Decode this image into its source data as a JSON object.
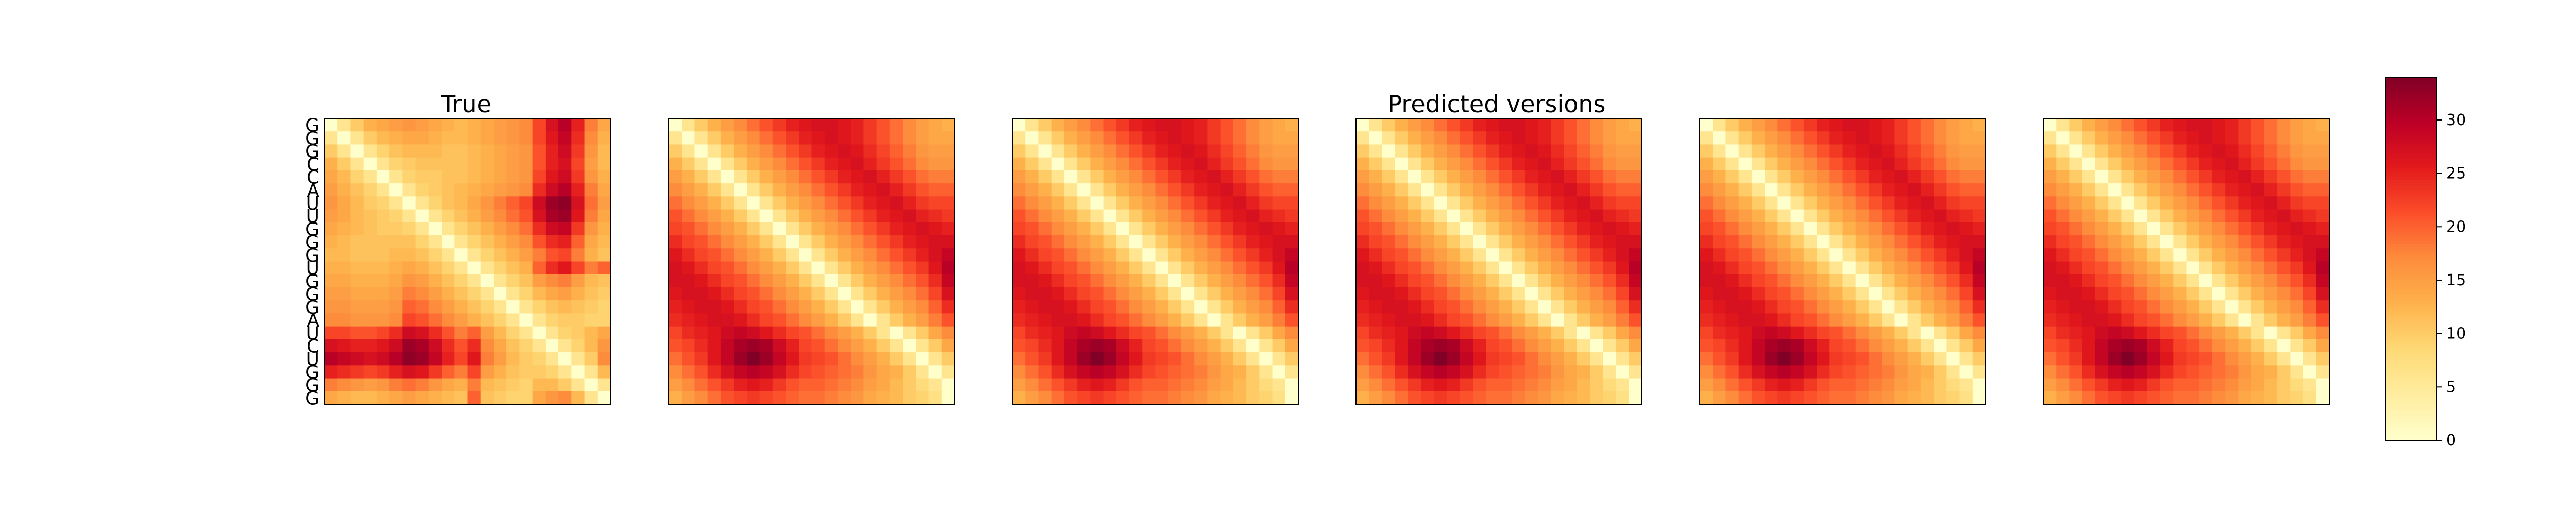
{
  "chart_data": {
    "type": "heatmap",
    "sequence": [
      "G",
      "G",
      "G",
      "C",
      "C",
      "A",
      "U",
      "U",
      "G",
      "G",
      "G",
      "U",
      "G",
      "G",
      "G",
      "A",
      "U",
      "C",
      "U",
      "G",
      "G",
      "G"
    ],
    "value_unit": "distance",
    "colorscale": {
      "name": "YlOrRd",
      "stops": [
        "#ffffcc",
        "#ffeda0",
        "#fed976",
        "#feb24c",
        "#fd8d3c",
        "#fc4e2a",
        "#e31a1c",
        "#bd0026",
        "#800026"
      ],
      "vmin": 0,
      "vmax": 34
    },
    "colorbar_ticks": [
      0,
      5,
      10,
      15,
      20,
      25,
      30
    ],
    "panels": [
      {
        "title": "True",
        "matrix": [
          [
            0,
            6,
            10,
            13,
            14,
            15,
            16,
            15,
            14,
            13,
            12,
            13,
            14,
            15,
            16,
            17,
            22,
            27,
            30,
            25,
            18,
            14
          ],
          [
            6,
            0,
            6,
            10,
            12,
            13,
            14,
            14,
            13,
            12,
            12,
            13,
            14,
            15,
            16,
            17,
            22,
            26,
            29,
            24,
            17,
            13
          ],
          [
            10,
            6,
            0,
            6,
            9,
            11,
            12,
            12,
            12,
            11,
            11,
            12,
            13,
            14,
            15,
            16,
            21,
            25,
            28,
            23,
            16,
            12
          ],
          [
            13,
            10,
            6,
            0,
            6,
            9,
            10,
            11,
            11,
            11,
            11,
            12,
            13,
            14,
            15,
            16,
            21,
            25,
            27,
            22,
            15,
            12
          ],
          [
            14,
            12,
            9,
            6,
            0,
            6,
            9,
            10,
            10,
            11,
            11,
            12,
            13,
            14,
            15,
            16,
            22,
            26,
            28,
            23,
            16,
            13
          ],
          [
            15,
            13,
            11,
            9,
            6,
            0,
            6,
            9,
            10,
            11,
            12,
            13,
            14,
            15,
            16,
            17,
            24,
            28,
            30,
            25,
            18,
            14
          ],
          [
            16,
            14,
            12,
            10,
            9,
            6,
            0,
            6,
            9,
            11,
            12,
            14,
            16,
            18,
            20,
            22,
            28,
            32,
            33,
            27,
            19,
            15
          ],
          [
            15,
            14,
            12,
            11,
            10,
            9,
            6,
            0,
            6,
            9,
            11,
            13,
            15,
            17,
            19,
            21,
            27,
            31,
            32,
            26,
            18,
            14
          ],
          [
            14,
            13,
            12,
            11,
            10,
            10,
            9,
            6,
            0,
            6,
            9,
            11,
            13,
            15,
            17,
            19,
            24,
            28,
            29,
            23,
            16,
            13
          ],
          [
            13,
            12,
            11,
            11,
            11,
            11,
            11,
            9,
            6,
            0,
            6,
            9,
            11,
            13,
            15,
            17,
            21,
            24,
            25,
            20,
            14,
            12
          ],
          [
            12,
            12,
            11,
            11,
            11,
            12,
            12,
            11,
            9,
            6,
            0,
            6,
            9,
            11,
            13,
            15,
            18,
            21,
            22,
            18,
            13,
            11
          ],
          [
            13,
            13,
            12,
            12,
            12,
            13,
            14,
            13,
            11,
            9,
            6,
            0,
            6,
            9,
            11,
            13,
            20,
            24,
            26,
            22,
            18,
            20
          ],
          [
            14,
            14,
            13,
            13,
            13,
            14,
            16,
            15,
            13,
            11,
            9,
            6,
            0,
            6,
            9,
            11,
            15,
            17,
            18,
            15,
            12,
            11
          ],
          [
            15,
            15,
            14,
            14,
            14,
            15,
            18,
            17,
            15,
            13,
            11,
            9,
            6,
            0,
            6,
            9,
            12,
            14,
            15,
            13,
            11,
            10
          ],
          [
            16,
            16,
            15,
            15,
            15,
            16,
            20,
            19,
            17,
            15,
            13,
            11,
            9,
            6,
            0,
            6,
            9,
            11,
            12,
            11,
            10,
            9
          ],
          [
            17,
            17,
            16,
            16,
            16,
            17,
            22,
            21,
            19,
            17,
            15,
            13,
            11,
            9,
            6,
            0,
            6,
            9,
            10,
            10,
            9,
            9
          ],
          [
            22,
            22,
            21,
            21,
            22,
            24,
            28,
            27,
            24,
            21,
            18,
            20,
            15,
            12,
            9,
            6,
            0,
            6,
            9,
            10,
            12,
            14
          ],
          [
            27,
            26,
            25,
            25,
            26,
            28,
            32,
            31,
            28,
            24,
            21,
            24,
            17,
            14,
            11,
            9,
            6,
            0,
            6,
            9,
            12,
            16
          ],
          [
            30,
            29,
            28,
            27,
            28,
            30,
            33,
            32,
            29,
            25,
            22,
            26,
            18,
            15,
            12,
            10,
            9,
            6,
            0,
            6,
            10,
            17
          ],
          [
            25,
            24,
            23,
            22,
            23,
            25,
            27,
            26,
            23,
            20,
            18,
            22,
            15,
            13,
            11,
            10,
            10,
            9,
            6,
            0,
            6,
            12
          ],
          [
            18,
            17,
            16,
            15,
            16,
            18,
            19,
            18,
            16,
            14,
            13,
            18,
            12,
            11,
            10,
            9,
            12,
            12,
            10,
            6,
            0,
            6
          ],
          [
            14,
            13,
            12,
            12,
            13,
            14,
            15,
            14,
            13,
            12,
            11,
            20,
            11,
            10,
            9,
            9,
            14,
            16,
            17,
            12,
            6,
            0
          ]
        ]
      },
      {
        "title": "Predicted versions",
        "matrix": [
          [
            0,
            6,
            10,
            13,
            15,
            17,
            19,
            21,
            23,
            25,
            26,
            27,
            27,
            26,
            25,
            23,
            21,
            19,
            17,
            15,
            14,
            13
          ],
          [
            6,
            0,
            6,
            10,
            13,
            15,
            17,
            19,
            21,
            23,
            25,
            26,
            27,
            26,
            25,
            23,
            21,
            19,
            17,
            15,
            14,
            14
          ],
          [
            10,
            6,
            0,
            6,
            10,
            13,
            15,
            17,
            19,
            21,
            23,
            25,
            26,
            27,
            26,
            24,
            22,
            20,
            18,
            16,
            15,
            15
          ],
          [
            13,
            10,
            6,
            0,
            6,
            10,
            13,
            15,
            17,
            19,
            21,
            23,
            25,
            26,
            27,
            25,
            23,
            21,
            19,
            17,
            16,
            16
          ],
          [
            15,
            13,
            10,
            6,
            0,
            6,
            10,
            13,
            15,
            17,
            19,
            21,
            23,
            25,
            26,
            27,
            25,
            23,
            21,
            19,
            18,
            18
          ],
          [
            17,
            15,
            13,
            10,
            6,
            0,
            6,
            10,
            13,
            15,
            17,
            19,
            21,
            23,
            25,
            26,
            27,
            25,
            23,
            21,
            20,
            20
          ],
          [
            19,
            17,
            15,
            13,
            10,
            6,
            0,
            6,
            10,
            13,
            15,
            17,
            19,
            21,
            23,
            25,
            26,
            27,
            25,
            23,
            22,
            22
          ],
          [
            21,
            19,
            17,
            15,
            13,
            10,
            6,
            0,
            6,
            10,
            13,
            15,
            17,
            19,
            21,
            23,
            25,
            26,
            27,
            25,
            24,
            23
          ],
          [
            22,
            21,
            19,
            17,
            15,
            13,
            10,
            6,
            0,
            6,
            10,
            13,
            15,
            17,
            19,
            21,
            23,
            25,
            26,
            27,
            26,
            25
          ],
          [
            24,
            22,
            21,
            19,
            17,
            15,
            13,
            10,
            6,
            0,
            6,
            10,
            13,
            15,
            17,
            19,
            21,
            23,
            25,
            26,
            27,
            27
          ],
          [
            26,
            24,
            22,
            21,
            19,
            17,
            15,
            13,
            10,
            6,
            0,
            6,
            10,
            13,
            15,
            17,
            19,
            21,
            23,
            25,
            27,
            29
          ],
          [
            27,
            26,
            24,
            22,
            21,
            19,
            17,
            15,
            13,
            10,
            6,
            0,
            6,
            10,
            13,
            15,
            17,
            19,
            21,
            23,
            26,
            30
          ],
          [
            27,
            27,
            26,
            24,
            22,
            21,
            19,
            17,
            15,
            13,
            10,
            6,
            0,
            6,
            10,
            13,
            15,
            17,
            19,
            21,
            24,
            29
          ],
          [
            26,
            27,
            27,
            26,
            24,
            22,
            21,
            19,
            17,
            15,
            13,
            10,
            6,
            0,
            6,
            10,
            13,
            15,
            17,
            19,
            22,
            27
          ],
          [
            25,
            26,
            27,
            27,
            26,
            24,
            22,
            21,
            19,
            17,
            15,
            13,
            10,
            6,
            0,
            6,
            10,
            13,
            15,
            17,
            20,
            24
          ],
          [
            24,
            25,
            26,
            27,
            27,
            26,
            24,
            22,
            21,
            19,
            17,
            15,
            13,
            10,
            6,
            0,
            6,
            10,
            13,
            15,
            18,
            21
          ],
          [
            22,
            24,
            25,
            26,
            28,
            29,
            28,
            26,
            24,
            22,
            21,
            19,
            17,
            15,
            13,
            10,
            6,
            0,
            6,
            10,
            14,
            17
          ],
          [
            21,
            22,
            24,
            26,
            29,
            31,
            32,
            31,
            28,
            25,
            22,
            21,
            19,
            17,
            15,
            13,
            10,
            6,
            0,
            6,
            10,
            14
          ],
          [
            19,
            21,
            23,
            26,
            29,
            32,
            34,
            32,
            29,
            26,
            23,
            22,
            21,
            19,
            17,
            15,
            13,
            10,
            6,
            0,
            6,
            10
          ],
          [
            17,
            19,
            21,
            24,
            27,
            29,
            30,
            29,
            27,
            24,
            22,
            21,
            20,
            19,
            18,
            16,
            14,
            13,
            10,
            6,
            0,
            6
          ],
          [
            15,
            17,
            19,
            21,
            23,
            25,
            26,
            25,
            23,
            21,
            20,
            20,
            19,
            18,
            17,
            15,
            14,
            12,
            10,
            8,
            6,
            0
          ],
          [
            13,
            15,
            17,
            19,
            21,
            22,
            23,
            22,
            21,
            20,
            19,
            19,
            18,
            17,
            16,
            14,
            13,
            12,
            10,
            9,
            7,
            0
          ]
        ],
        "render_count": 5
      }
    ]
  }
}
